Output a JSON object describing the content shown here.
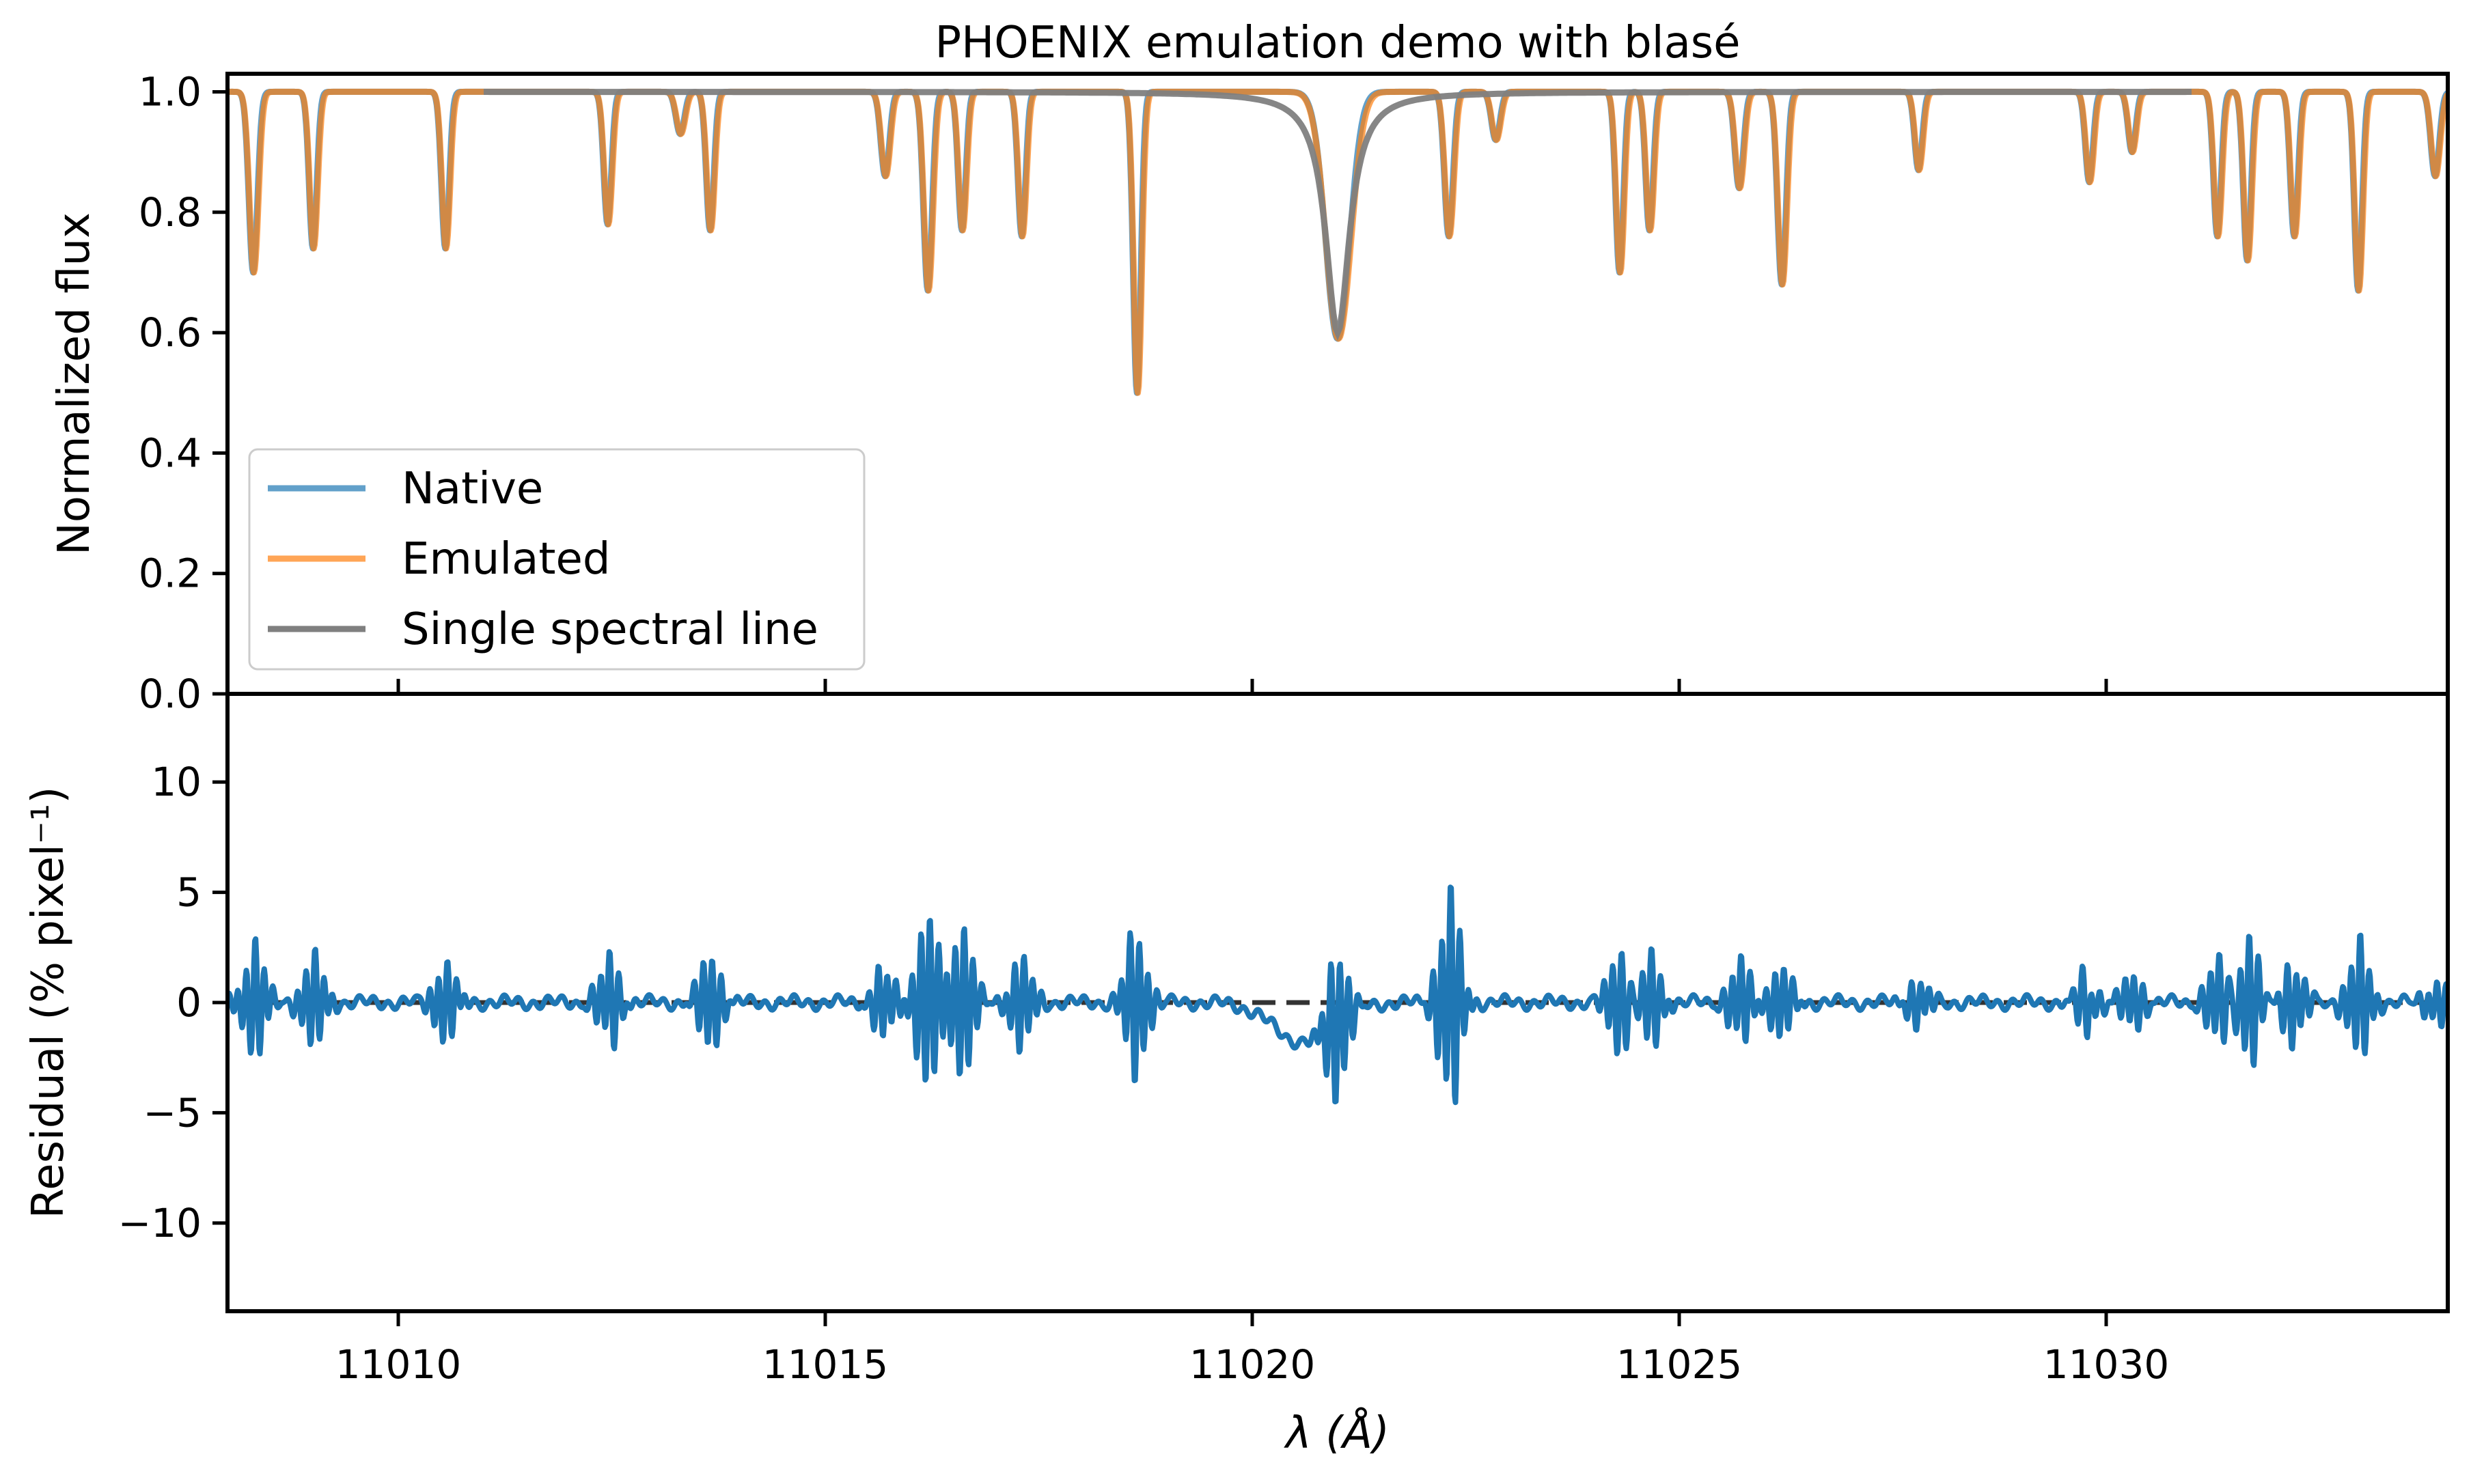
{
  "chart_data": [
    {
      "type": "line",
      "panel": "top",
      "title": "PHOENIX emulation demo with blasé",
      "xlabel": "",
      "ylabel": "Normalized flux",
      "xlim": [
        11008.0,
        11034.0
      ],
      "ylim": [
        0.0,
        1.03
      ],
      "yticks": [
        0.0,
        0.2,
        0.4,
        0.6,
        0.8,
        1.0
      ],
      "ytick_labels": [
        "0.0",
        "0.2",
        "0.4",
        "0.6",
        "0.8",
        "1.0"
      ],
      "legend_position": "center-left",
      "legend": [
        "Native",
        "Emulated",
        "Single spectral line"
      ],
      "lines_approx_center_depth_width": [
        [
          11008.3,
          0.3,
          0.05
        ],
        [
          11009.0,
          0.26,
          0.045
        ],
        [
          11010.55,
          0.26,
          0.045
        ],
        [
          11012.45,
          0.22,
          0.045
        ],
        [
          11013.3,
          0.07,
          0.05
        ],
        [
          11013.65,
          0.23,
          0.045
        ],
        [
          11015.7,
          0.14,
          0.05
        ],
        [
          11016.2,
          0.33,
          0.05
        ],
        [
          11016.6,
          0.23,
          0.045
        ],
        [
          11017.3,
          0.24,
          0.045
        ],
        [
          11018.65,
          0.5,
          0.045
        ],
        [
          11021.0,
          0.41,
          0.14
        ],
        [
          11022.3,
          0.24,
          0.05
        ],
        [
          11022.85,
          0.08,
          0.05
        ],
        [
          11024.3,
          0.3,
          0.045
        ],
        [
          11024.65,
          0.23,
          0.045
        ],
        [
          11025.7,
          0.16,
          0.05
        ],
        [
          11026.2,
          0.32,
          0.05
        ],
        [
          11027.8,
          0.13,
          0.045
        ],
        [
          11029.8,
          0.15,
          0.045
        ],
        [
          11030.3,
          0.1,
          0.045
        ],
        [
          11031.3,
          0.24,
          0.045
        ],
        [
          11031.65,
          0.28,
          0.045
        ],
        [
          11032.2,
          0.24,
          0.045
        ],
        [
          11032.95,
          0.33,
          0.045
        ],
        [
          11033.85,
          0.14,
          0.05
        ]
      ],
      "single_line": {
        "center": 11021.0,
        "depth": 0.4,
        "width": 0.17,
        "x_range": [
          11011.0,
          11031.0
        ]
      },
      "series": [
        {
          "name": "Native",
          "color": "#1f77b4",
          "opacity": 0.7
        },
        {
          "name": "Emulated",
          "color": "#ff7f0e",
          "opacity": 0.7
        },
        {
          "name": "Single spectral line",
          "color": "#7f7f7f",
          "opacity": 1.0
        }
      ]
    },
    {
      "type": "line",
      "panel": "bottom",
      "title": "",
      "xlabel": "λ (Å)",
      "ylabel": "Residual (% pixel⁻¹)",
      "xlim": [
        11008.0,
        11034.0
      ],
      "ylim": [
        -14.0,
        14.0
      ],
      "yticks": [
        -10,
        -5,
        0,
        5,
        10
      ],
      "ytick_labels": [
        "−10",
        "−5",
        "0",
        "5",
        "10"
      ],
      "xticks": [
        11010,
        11015,
        11020,
        11025,
        11030
      ],
      "xtick_labels": [
        "11010",
        "11015",
        "11020",
        "11025",
        "11030"
      ],
      "zero_line": {
        "y": 0,
        "style": "dashed",
        "color": "#333333"
      },
      "residual_features_approx": [
        [
          11008.3,
          3.2,
          -2.4
        ],
        [
          11009.0,
          2.4,
          -2.2
        ],
        [
          11010.55,
          2.0,
          -2.0
        ],
        [
          11012.45,
          2.5,
          -1.8
        ],
        [
          11013.65,
          2.4,
          -2.4
        ],
        [
          11015.7,
          1.5,
          -2.0
        ],
        [
          11016.2,
          4.4,
          -4.4
        ],
        [
          11016.6,
          4.0,
          -3.5
        ],
        [
          11017.3,
          2.2,
          -2.4
        ],
        [
          11018.65,
          3.2,
          -3.9
        ],
        [
          11021.0,
          3.4,
          -3.8
        ],
        [
          11022.3,
          5.9,
          -4.5
        ],
        [
          11024.3,
          2.6,
          -2.6
        ],
        [
          11024.65,
          2.5,
          -2.2
        ],
        [
          11025.7,
          2.3,
          -1.8
        ],
        [
          11026.2,
          1.7,
          -2.0
        ],
        [
          11027.8,
          1.1,
          -1.2
        ],
        [
          11029.8,
          0.9,
          -1.8
        ],
        [
          11030.3,
          1.5,
          -1.3
        ],
        [
          11031.3,
          2.4,
          -2.0
        ],
        [
          11031.65,
          3.6,
          -2.7
        ],
        [
          11032.2,
          1.8,
          -2.2
        ],
        [
          11032.95,
          3.1,
          -2.5
        ],
        [
          11033.85,
          1.2,
          -0.9
        ]
      ],
      "residual_broad_dip": {
        "center": 11020.6,
        "min": -1.8
      },
      "series": [
        {
          "name": "",
          "color": "#1f77b4"
        }
      ]
    }
  ]
}
